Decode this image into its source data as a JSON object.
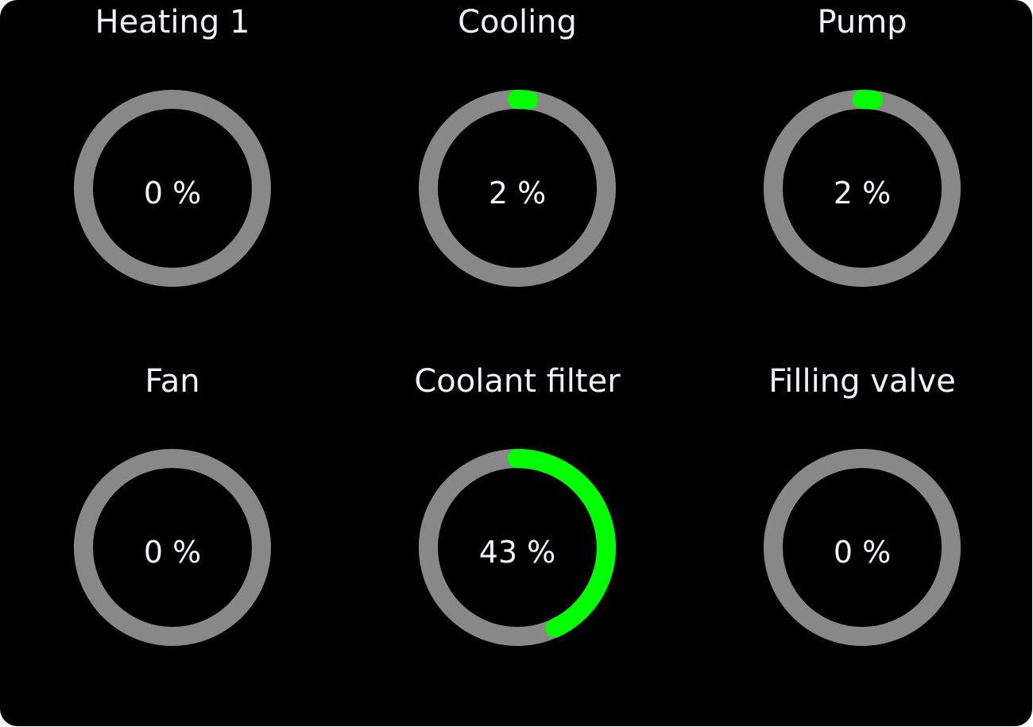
{
  "colors": {
    "track": "#888888",
    "fill": "#00ff00",
    "background": "#000000",
    "text": "#f2f2ff"
  },
  "gauges": [
    {
      "label": "Heating 1",
      "value": 0,
      "value_text": "0 %"
    },
    {
      "label": "Cooling",
      "value": 2,
      "value_text": "2 %"
    },
    {
      "label": "Pump",
      "value": 2,
      "value_text": "2 %"
    },
    {
      "label": "Fan",
      "value": 0,
      "value_text": "0 %"
    },
    {
      "label": "Coolant filter",
      "value": 43,
      "value_text": "43 %"
    },
    {
      "label": "Filling valve",
      "value": 0,
      "value_text": "0 %"
    }
  ]
}
